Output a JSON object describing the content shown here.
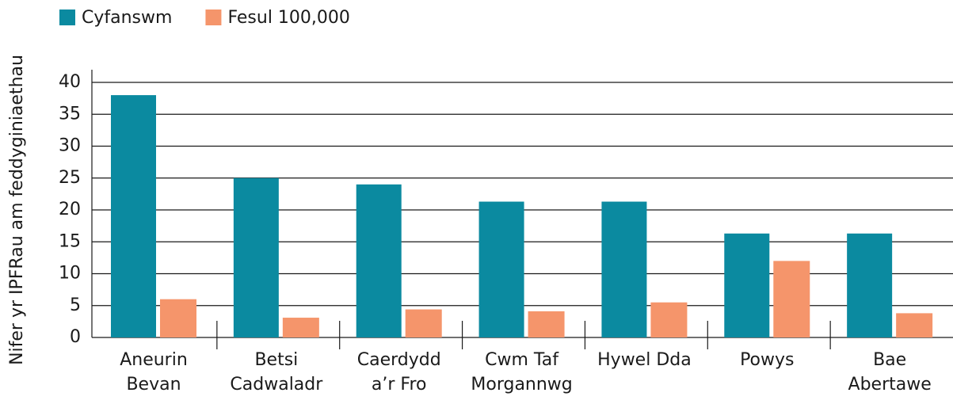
{
  "chart_data": {
    "type": "bar",
    "y_label": "Nifer yr IPFRau am feddyginiaethau",
    "categories": [
      [
        "Aneurin",
        "Bevan"
      ],
      [
        "Betsi",
        "Cadwaladr"
      ],
      [
        "Caerdydd",
        "a’r Fro"
      ],
      [
        "Cwm Taf",
        "Morgannwg"
      ],
      [
        "Hywel Dda"
      ],
      [
        "Powys"
      ],
      [
        "Bae",
        "Abertawe"
      ]
    ],
    "series": [
      {
        "name": "Cyfanswm",
        "color": "#0b8aa0",
        "values": [
          38,
          25,
          24,
          21.3,
          21.3,
          16.3,
          16.3
        ]
      },
      {
        "name": "Fesul 100,000",
        "color": "#f5956b",
        "values": [
          6,
          3.1,
          4.4,
          4.1,
          5.5,
          12,
          3.8
        ]
      }
    ],
    "ylim": [
      0,
      40
    ],
    "yticks": [
      0,
      5,
      10,
      15,
      20,
      25,
      30,
      35,
      40
    ],
    "grid": true,
    "legend": "top"
  }
}
